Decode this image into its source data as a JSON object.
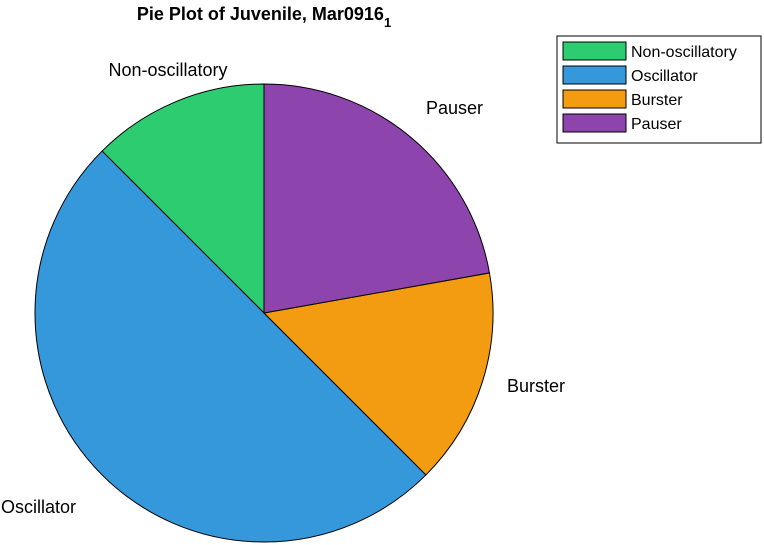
{
  "chart_data": {
    "type": "pie",
    "title": "Pie Plot of Juvenile, Mar0916",
    "title_subscript": "1",
    "slices": [
      {
        "label": "Non-oscillatory",
        "value": 12.5,
        "color": "#2ecc71"
      },
      {
        "label": "Oscillator",
        "value": 50,
        "color": "#3498db"
      },
      {
        "label": "Burster",
        "value": 15.3,
        "color": "#f39c12"
      },
      {
        "label": "Pauser",
        "value": 22.2,
        "color": "#8e44ad"
      }
    ],
    "legend": {
      "placement": "top-right",
      "entries": [
        "Non-oscillatory",
        "Oscillator",
        "Burster",
        "Pauser"
      ]
    }
  }
}
